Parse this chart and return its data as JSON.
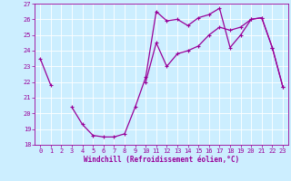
{
  "xlabel": "Windchill (Refroidissement éolien,°C)",
  "line_color": "#990099",
  "bg_color": "#cceeff",
  "grid_color": "#ffffff",
  "ylim": [
    18,
    27
  ],
  "xlim": [
    -0.5,
    23.5
  ],
  "yticks": [
    18,
    19,
    20,
    21,
    22,
    23,
    24,
    25,
    26,
    27
  ],
  "xticks": [
    0,
    1,
    2,
    3,
    4,
    5,
    6,
    7,
    8,
    9,
    10,
    11,
    12,
    13,
    14,
    15,
    16,
    17,
    18,
    19,
    20,
    21,
    22,
    23
  ],
  "curve1": [
    23.5,
    21.8,
    null,
    20.4,
    19.3,
    18.6,
    18.5,
    18.5,
    18.7,
    20.4,
    22.3,
    26.5,
    25.9,
    26.0,
    25.6,
    26.1,
    26.3,
    26.7,
    24.2,
    25.0,
    26.0,
    26.1,
    24.2,
    21.7
  ],
  "curve2": [
    null,
    null,
    null,
    null,
    null,
    null,
    null,
    null,
    null,
    null,
    22.0,
    24.5,
    23.0,
    23.8,
    24.0,
    24.3,
    25.0,
    25.5,
    25.3,
    25.5,
    26.0,
    26.1,
    24.2,
    21.7
  ],
  "marker_size": 3,
  "line_width": 0.9,
  "tick_fontsize": 5,
  "xlabel_fontsize": 5.5
}
